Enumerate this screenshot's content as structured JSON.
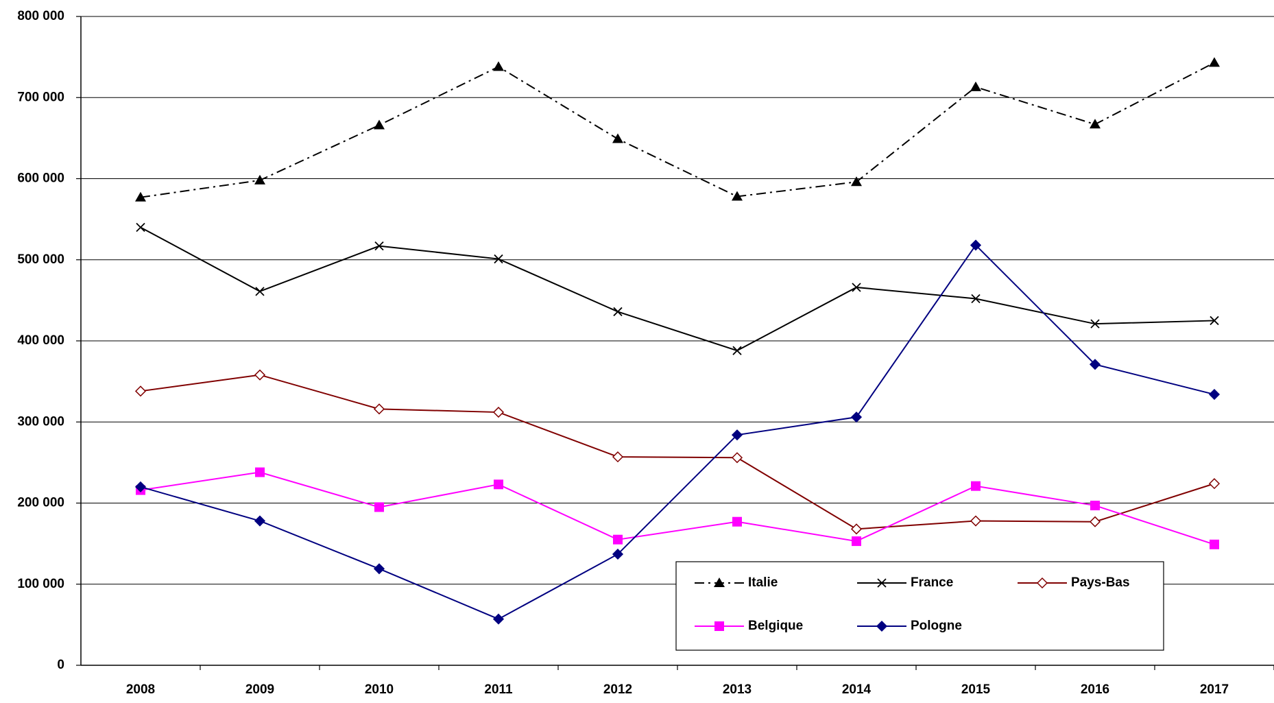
{
  "chart_data": {
    "type": "line",
    "categories": [
      "2008",
      "2009",
      "2010",
      "2011",
      "2012",
      "2013",
      "2014",
      "2015",
      "2016",
      "2017"
    ],
    "series": [
      {
        "name": "Italie",
        "color": "#000000",
        "marker": "triangle",
        "line_style": "dashdot",
        "values": [
          577000,
          598000,
          666000,
          738000,
          649000,
          578000,
          596000,
          713000,
          667000,
          743000
        ]
      },
      {
        "name": "France",
        "color": "#000000",
        "marker": "x",
        "line_style": "solid",
        "values": [
          540000,
          461000,
          517000,
          501000,
          436000,
          388000,
          466000,
          452000,
          421000,
          425000
        ]
      },
      {
        "name": "Pays-Bas",
        "color": "#800000",
        "marker": "diamond-open",
        "line_style": "solid",
        "values": [
          338000,
          358000,
          316000,
          312000,
          257000,
          256000,
          168000,
          178000,
          177000,
          224000
        ]
      },
      {
        "name": "Belgique",
        "color": "#ff00ff",
        "marker": "square",
        "line_style": "solid",
        "values": [
          216000,
          238000,
          195000,
          223000,
          155000,
          177000,
          153000,
          221000,
          197000,
          149000
        ]
      },
      {
        "name": "Pologne",
        "color": "#000080",
        "marker": "diamond",
        "line_style": "solid",
        "values": [
          220000,
          178000,
          119000,
          57000,
          137000,
          284000,
          306000,
          518000,
          371000,
          334000
        ]
      }
    ],
    "ylim": [
      0,
      800000
    ],
    "yticks": [
      0,
      {
        "value": 100000,
        "label": "100 000"
      },
      {
        "value": 200000,
        "label": "200 000"
      },
      {
        "value": 300000,
        "label": "300 000"
      },
      {
        "value": 400000,
        "label": "400 000"
      },
      {
        "value": 500000,
        "label": "500 000"
      },
      {
        "value": 600000,
        "label": "600 000"
      },
      {
        "value": 700000,
        "label": "700 000"
      },
      {
        "value": 800000,
        "label": "800 000"
      }
    ],
    "grid": true,
    "legend": "lower right"
  }
}
